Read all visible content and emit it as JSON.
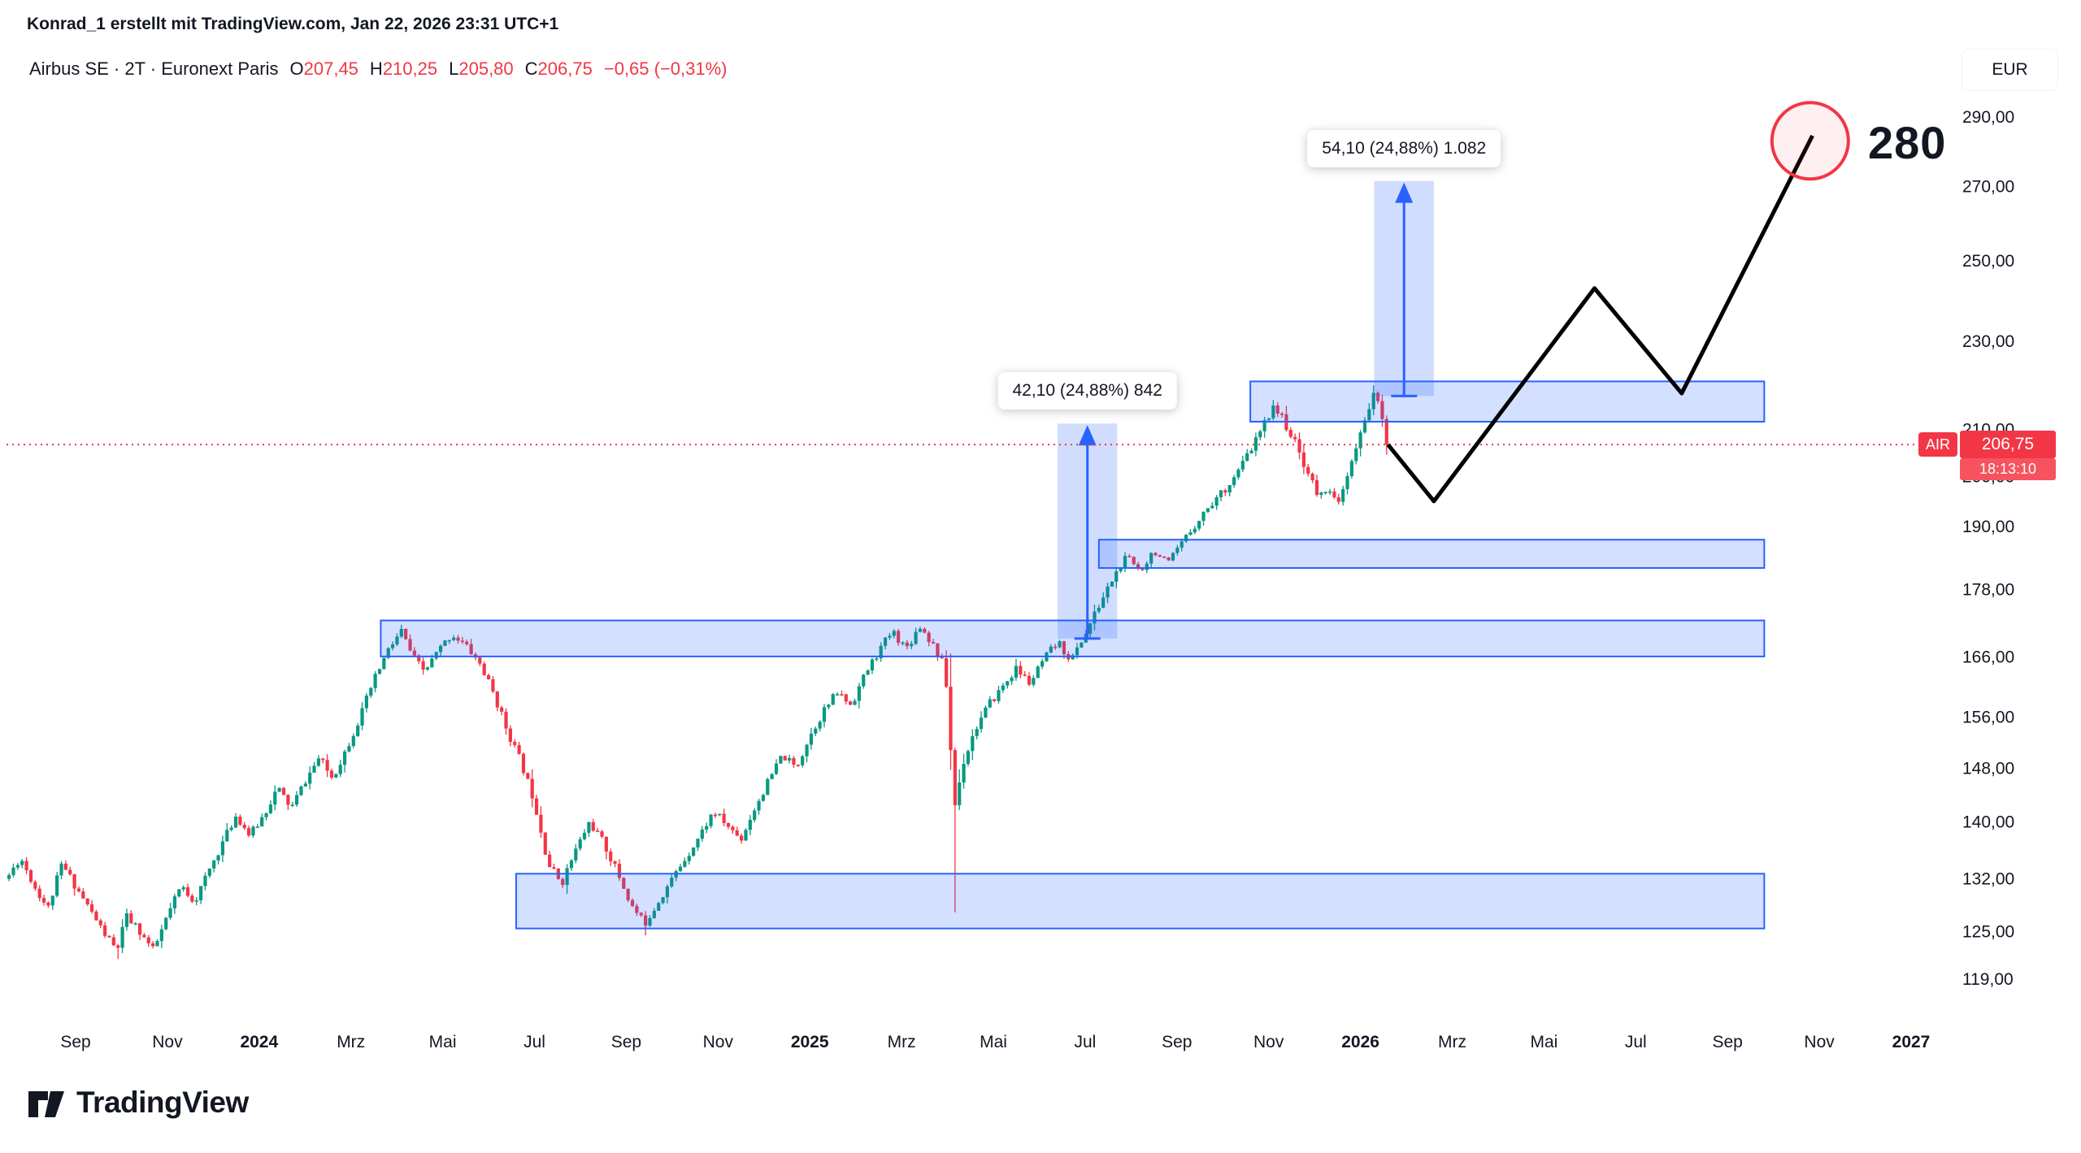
{
  "attribution": "Konrad_1 erstellt mit TradingView.com, Jan 22, 2026 23:31 UTC+1",
  "header": {
    "symbol_title": "Airbus SE · 2T · Euronext Paris",
    "ohlc": {
      "o_label": "O",
      "o_value": "207,45",
      "h_label": "H",
      "h_value": "210,25",
      "l_label": "L",
      "l_value": "205,80",
      "c_label": "C",
      "c_value": "206,75",
      "change": "−0,65 (−0,31%)"
    }
  },
  "currency_button_label": "EUR",
  "price_tag": {
    "ticker": "AIR",
    "price": "206,75",
    "countdown": "18:13:10"
  },
  "logo": {
    "text": "TradingView"
  },
  "colors": {
    "up": "#089981",
    "down": "#F23645",
    "zone_fill": "rgba(41,98,255,0.20)",
    "zone_border": "#2962FF",
    "measure_fill": "rgba(41,98,255,0.22)",
    "measure_arrow": "#2962FF",
    "price_line": "#F23645",
    "projection_line": "#000000",
    "target_circle_stroke": "#F23645",
    "target_circle_fill": "rgba(242,54,69,0.08)",
    "axis_text": "#131722"
  },
  "chart_data": {
    "type": "candlestick",
    "symbol": "Airbus SE",
    "interval": "2T",
    "exchange": "Euronext Paris",
    "currency": "EUR",
    "scale": "logarithmic",
    "current": {
      "open": 207.45,
      "high": 210.25,
      "low": 205.8,
      "close": 206.75,
      "change": -0.65,
      "change_pct": -0.31
    },
    "current_price": 206.75,
    "y_axis": {
      "labels": [
        "290,00",
        "270,00",
        "250,00",
        "230,00",
        "210,00",
        "200,00",
        "190,00",
        "178,00",
        "166,00",
        "156,00",
        "148,00",
        "140,00",
        "132,00",
        "125,00",
        "119,00"
      ]
    },
    "x_axis": {
      "ticks": [
        {
          "label": "Sep",
          "t": 0
        },
        {
          "label": "Nov",
          "t": 2
        },
        {
          "label": "2024",
          "t": 4,
          "year": true
        },
        {
          "label": "Mrz",
          "t": 6
        },
        {
          "label": "Mai",
          "t": 8
        },
        {
          "label": "Jul",
          "t": 10
        },
        {
          "label": "Sep",
          "t": 12
        },
        {
          "label": "Nov",
          "t": 14
        },
        {
          "label": "2025",
          "t": 16,
          "year": true
        },
        {
          "label": "Mrz",
          "t": 18
        },
        {
          "label": "Mai",
          "t": 20
        },
        {
          "label": "Jul",
          "t": 22
        },
        {
          "label": "Sep",
          "t": 24
        },
        {
          "label": "Nov",
          "t": 26
        },
        {
          "label": "2026",
          "t": 28,
          "year": true
        },
        {
          "label": "Mrz",
          "t": 30
        },
        {
          "label": "Mai",
          "t": 32
        },
        {
          "label": "Jul",
          "t": 34
        },
        {
          "label": "Sep",
          "t": 36
        },
        {
          "label": "Nov",
          "t": 38
        },
        {
          "label": "2027",
          "t": 40,
          "year": true
        }
      ]
    },
    "zones": [
      {
        "price_from": 211.7,
        "price_to": 220.7,
        "t_from": 25.6,
        "t_to": 36.8
      },
      {
        "price_from": 182.0,
        "price_to": 187.4,
        "t_from": 22.3,
        "t_to": 36.8
      },
      {
        "price_from": 166.1,
        "price_to": 172.4,
        "t_from": 6.65,
        "t_to": 36.8
      },
      {
        "price_from": 125.4,
        "price_to": 132.7,
        "t_from": 9.6,
        "t_to": 36.8
      }
    ],
    "measurements": [
      {
        "label": "42,10 (24,88%) 842",
        "value": 42.1,
        "pct": 24.88,
        "bars": 842,
        "price_from": 169.2,
        "price_to": 211.3,
        "t_from": 21.4,
        "t_to": 22.7
      },
      {
        "label": "54,10 (24,88%) 1.082",
        "value": 54.1,
        "pct": 24.88,
        "bars": 1082,
        "price_from": 217.4,
        "price_to": 271.5,
        "t_from": 28.3,
        "t_to": 29.6
      }
    ],
    "projection": {
      "points": [
        [
          28.6,
          206.75
        ],
        [
          29.6,
          195.0
        ],
        [
          33.1,
          243.0
        ],
        [
          35.0,
          218.0
        ],
        [
          37.85,
          284.5
        ]
      ],
      "target": {
        "t": 37.8,
        "price": 283,
        "label": "280"
      }
    },
    "price_path": [
      [
        -1.5,
        132
      ],
      [
        -1.2,
        135
      ],
      [
        -0.9,
        131
      ],
      [
        -0.6,
        128
      ],
      [
        -0.3,
        134
      ],
      [
        0,
        131
      ],
      [
        0.3,
        128
      ],
      [
        0.6,
        125
      ],
      [
        0.9,
        122.5
      ],
      [
        1.1,
        127
      ],
      [
        1.4,
        125
      ],
      [
        1.7,
        122.5
      ],
      [
        2.0,
        127
      ],
      [
        2.3,
        131
      ],
      [
        2.6,
        129
      ],
      [
        2.9,
        133
      ],
      [
        3.2,
        137
      ],
      [
        3.5,
        141
      ],
      [
        3.8,
        138
      ],
      [
        4.1,
        141
      ],
      [
        4.4,
        145
      ],
      [
        4.7,
        142
      ],
      [
        5.0,
        146
      ],
      [
        5.3,
        149.5
      ],
      [
        5.6,
        146.5
      ],
      [
        5.9,
        151
      ],
      [
        6.2,
        156
      ],
      [
        6.5,
        162
      ],
      [
        6.8,
        167
      ],
      [
        7.1,
        170.5
      ],
      [
        7.35,
        166
      ],
      [
        7.6,
        163.5
      ],
      [
        7.9,
        167
      ],
      [
        8.2,
        170
      ],
      [
        8.5,
        168
      ],
      [
        8.8,
        165
      ],
      [
        9.1,
        160
      ],
      [
        9.4,
        154
      ],
      [
        9.7,
        149
      ],
      [
        10.0,
        143
      ],
      [
        10.3,
        134
      ],
      [
        10.6,
        131.5
      ],
      [
        10.9,
        136
      ],
      [
        11.2,
        140
      ],
      [
        11.5,
        137
      ],
      [
        11.8,
        133
      ],
      [
        12.1,
        128.5
      ],
      [
        12.4,
        126
      ],
      [
        12.7,
        129
      ],
      [
        13.0,
        132
      ],
      [
        13.3,
        135
      ],
      [
        13.6,
        138
      ],
      [
        13.9,
        141.5
      ],
      [
        14.2,
        139.5
      ],
      [
        14.5,
        137.5
      ],
      [
        14.8,
        142
      ],
      [
        15.1,
        146
      ],
      [
        15.4,
        150
      ],
      [
        15.7,
        148
      ],
      [
        16.0,
        153
      ],
      [
        16.3,
        157
      ],
      [
        16.6,
        160
      ],
      [
        16.9,
        158
      ],
      [
        17.2,
        163
      ],
      [
        17.5,
        167
      ],
      [
        17.8,
        170.5
      ],
      [
        18.1,
        167.5
      ],
      [
        18.4,
        171.5
      ],
      [
        18.7,
        168
      ],
      [
        18.95,
        164
      ],
      [
        19.15,
        142
      ],
      [
        19.35,
        149
      ],
      [
        19.6,
        154
      ],
      [
        19.9,
        158
      ],
      [
        20.2,
        161
      ],
      [
        20.5,
        164
      ],
      [
        20.8,
        161.5
      ],
      [
        21.1,
        165.5
      ],
      [
        21.4,
        168.5
      ],
      [
        21.7,
        165.5
      ],
      [
        22.0,
        170
      ],
      [
        22.3,
        175
      ],
      [
        22.6,
        180
      ],
      [
        22.9,
        184
      ],
      [
        23.2,
        181.5
      ],
      [
        23.5,
        185.5
      ],
      [
        23.8,
        182.5
      ],
      [
        24.1,
        186.5
      ],
      [
        24.4,
        190.5
      ],
      [
        24.7,
        194
      ],
      [
        25.0,
        197
      ],
      [
        25.3,
        200.5
      ],
      [
        25.6,
        205.5
      ],
      [
        25.9,
        211
      ],
      [
        26.1,
        215.5
      ],
      [
        26.35,
        211.5
      ],
      [
        26.6,
        206.5
      ],
      [
        26.85,
        201
      ],
      [
        27.1,
        195.5
      ],
      [
        27.3,
        198.5
      ],
      [
        27.5,
        193.5
      ],
      [
        27.7,
        199.5
      ],
      [
        27.9,
        205.5
      ],
      [
        28.1,
        212
      ],
      [
        28.3,
        219
      ],
      [
        28.45,
        212.5
      ],
      [
        28.6,
        206.75
      ]
    ],
    "spikes": [
      {
        "t": 19.15,
        "low": 127.5
      },
      {
        "t": 0.9,
        "low": 121.5
      },
      {
        "t": 12.4,
        "low": 124.5
      }
    ],
    "t_start": -1.45,
    "t_end": 28.6,
    "candle_step": 0.095,
    "seed": 11
  }
}
